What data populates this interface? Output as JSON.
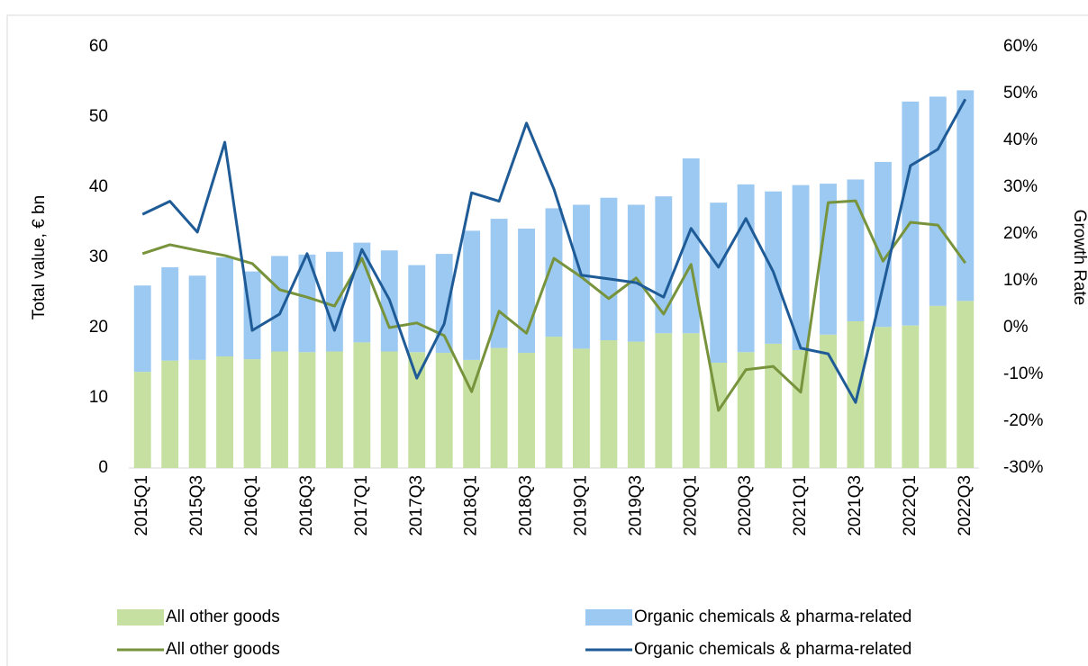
{
  "chart_data": {
    "type": "bar",
    "y_label": "Total value, € bn",
    "y2_label": "Growth Rate",
    "categories": [
      "2015Q1",
      null,
      "2015Q3",
      null,
      "2016Q1",
      null,
      "2016Q3",
      null,
      "2017Q1",
      null,
      "2017Q3",
      null,
      "2018Q1",
      null,
      "2018Q3",
      null,
      "2019Q1",
      null,
      "2019Q3",
      null,
      "2020Q1",
      null,
      "2020Q3",
      null,
      "2021Q1",
      null,
      "2021Q3",
      null,
      "2022Q1",
      null,
      "2022Q3"
    ],
    "ylim": [
      0,
      60
    ],
    "yticks": [
      0,
      10,
      20,
      30,
      40,
      50,
      60
    ],
    "y2lim": [
      -30,
      60
    ],
    "y2ticks": [
      {
        "value": -30,
        "label": "-30%"
      },
      {
        "value": -20,
        "label": "-20%"
      },
      {
        "value": -10,
        "label": "-10%"
      },
      {
        "value": 0,
        "label": "0%"
      },
      {
        "value": 10,
        "label": "10%"
      },
      {
        "value": 20,
        "label": "20%"
      },
      {
        "value": 30,
        "label": "30%"
      },
      {
        "value": 40,
        "label": "40%"
      },
      {
        "value": 50,
        "label": "50%"
      },
      {
        "value": 60,
        "label": "60%"
      }
    ],
    "series": [
      {
        "name": "All other goods",
        "type": "bar",
        "color": "#c5e0a0",
        "values": [
          13.7,
          15.3,
          15.4,
          15.9,
          15.5,
          16.6,
          16.5,
          16.6,
          17.9,
          16.6,
          16.5,
          16.4,
          15.4,
          17.1,
          16.4,
          18.7,
          17.0,
          18.2,
          18.0,
          19.2,
          19.2,
          15.0,
          16.5,
          17.7,
          16.8,
          19.0,
          20.9,
          20.1,
          20.3,
          23.1,
          23.8
        ]
      },
      {
        "name": "Organic chemicals & pharma-related",
        "type": "bar",
        "color": "#9cc9f2",
        "values": [
          12.3,
          13.3,
          12.0,
          14.1,
          12.5,
          13.6,
          13.9,
          14.2,
          14.2,
          14.4,
          12.4,
          14.1,
          18.4,
          18.4,
          17.7,
          18.3,
          20.5,
          20.3,
          19.5,
          19.5,
          24.9,
          22.8,
          23.9,
          21.7,
          23.5,
          21.5,
          20.2,
          23.5,
          31.9,
          29.8,
          30.0
        ]
      },
      {
        "name": "All other goods",
        "type": "line",
        "axis": "y2",
        "color": "#77933c",
        "values": [
          15.8,
          17.7,
          16.5,
          15.4,
          13.7,
          8.1,
          6.5,
          4.6,
          14.8,
          0,
          1,
          -1.7,
          -13.7,
          3.5,
          -1.2,
          14.8,
          10.8,
          6.2,
          10.6,
          2.9,
          13.5,
          -17.7,
          -9,
          -8.3,
          -13.8,
          26.7,
          27.1,
          14.2,
          22.5,
          21.9,
          13.8
        ]
      },
      {
        "name": "Organic chemicals & pharma-related",
        "type": "line",
        "axis": "y2",
        "color": "#1f5b96",
        "values": [
          24.2,
          27,
          20.4,
          39.6,
          -0.6,
          2.9,
          15.8,
          -0.6,
          16.7,
          6,
          -10.8,
          0.8,
          28.8,
          27,
          43.7,
          29.6,
          11.2,
          10.4,
          9.6,
          6.5,
          21.2,
          12.9,
          23.3,
          11.9,
          -4.4,
          -5.6,
          -16,
          8.8,
          34.6,
          38.1,
          48.8
        ]
      }
    ]
  }
}
